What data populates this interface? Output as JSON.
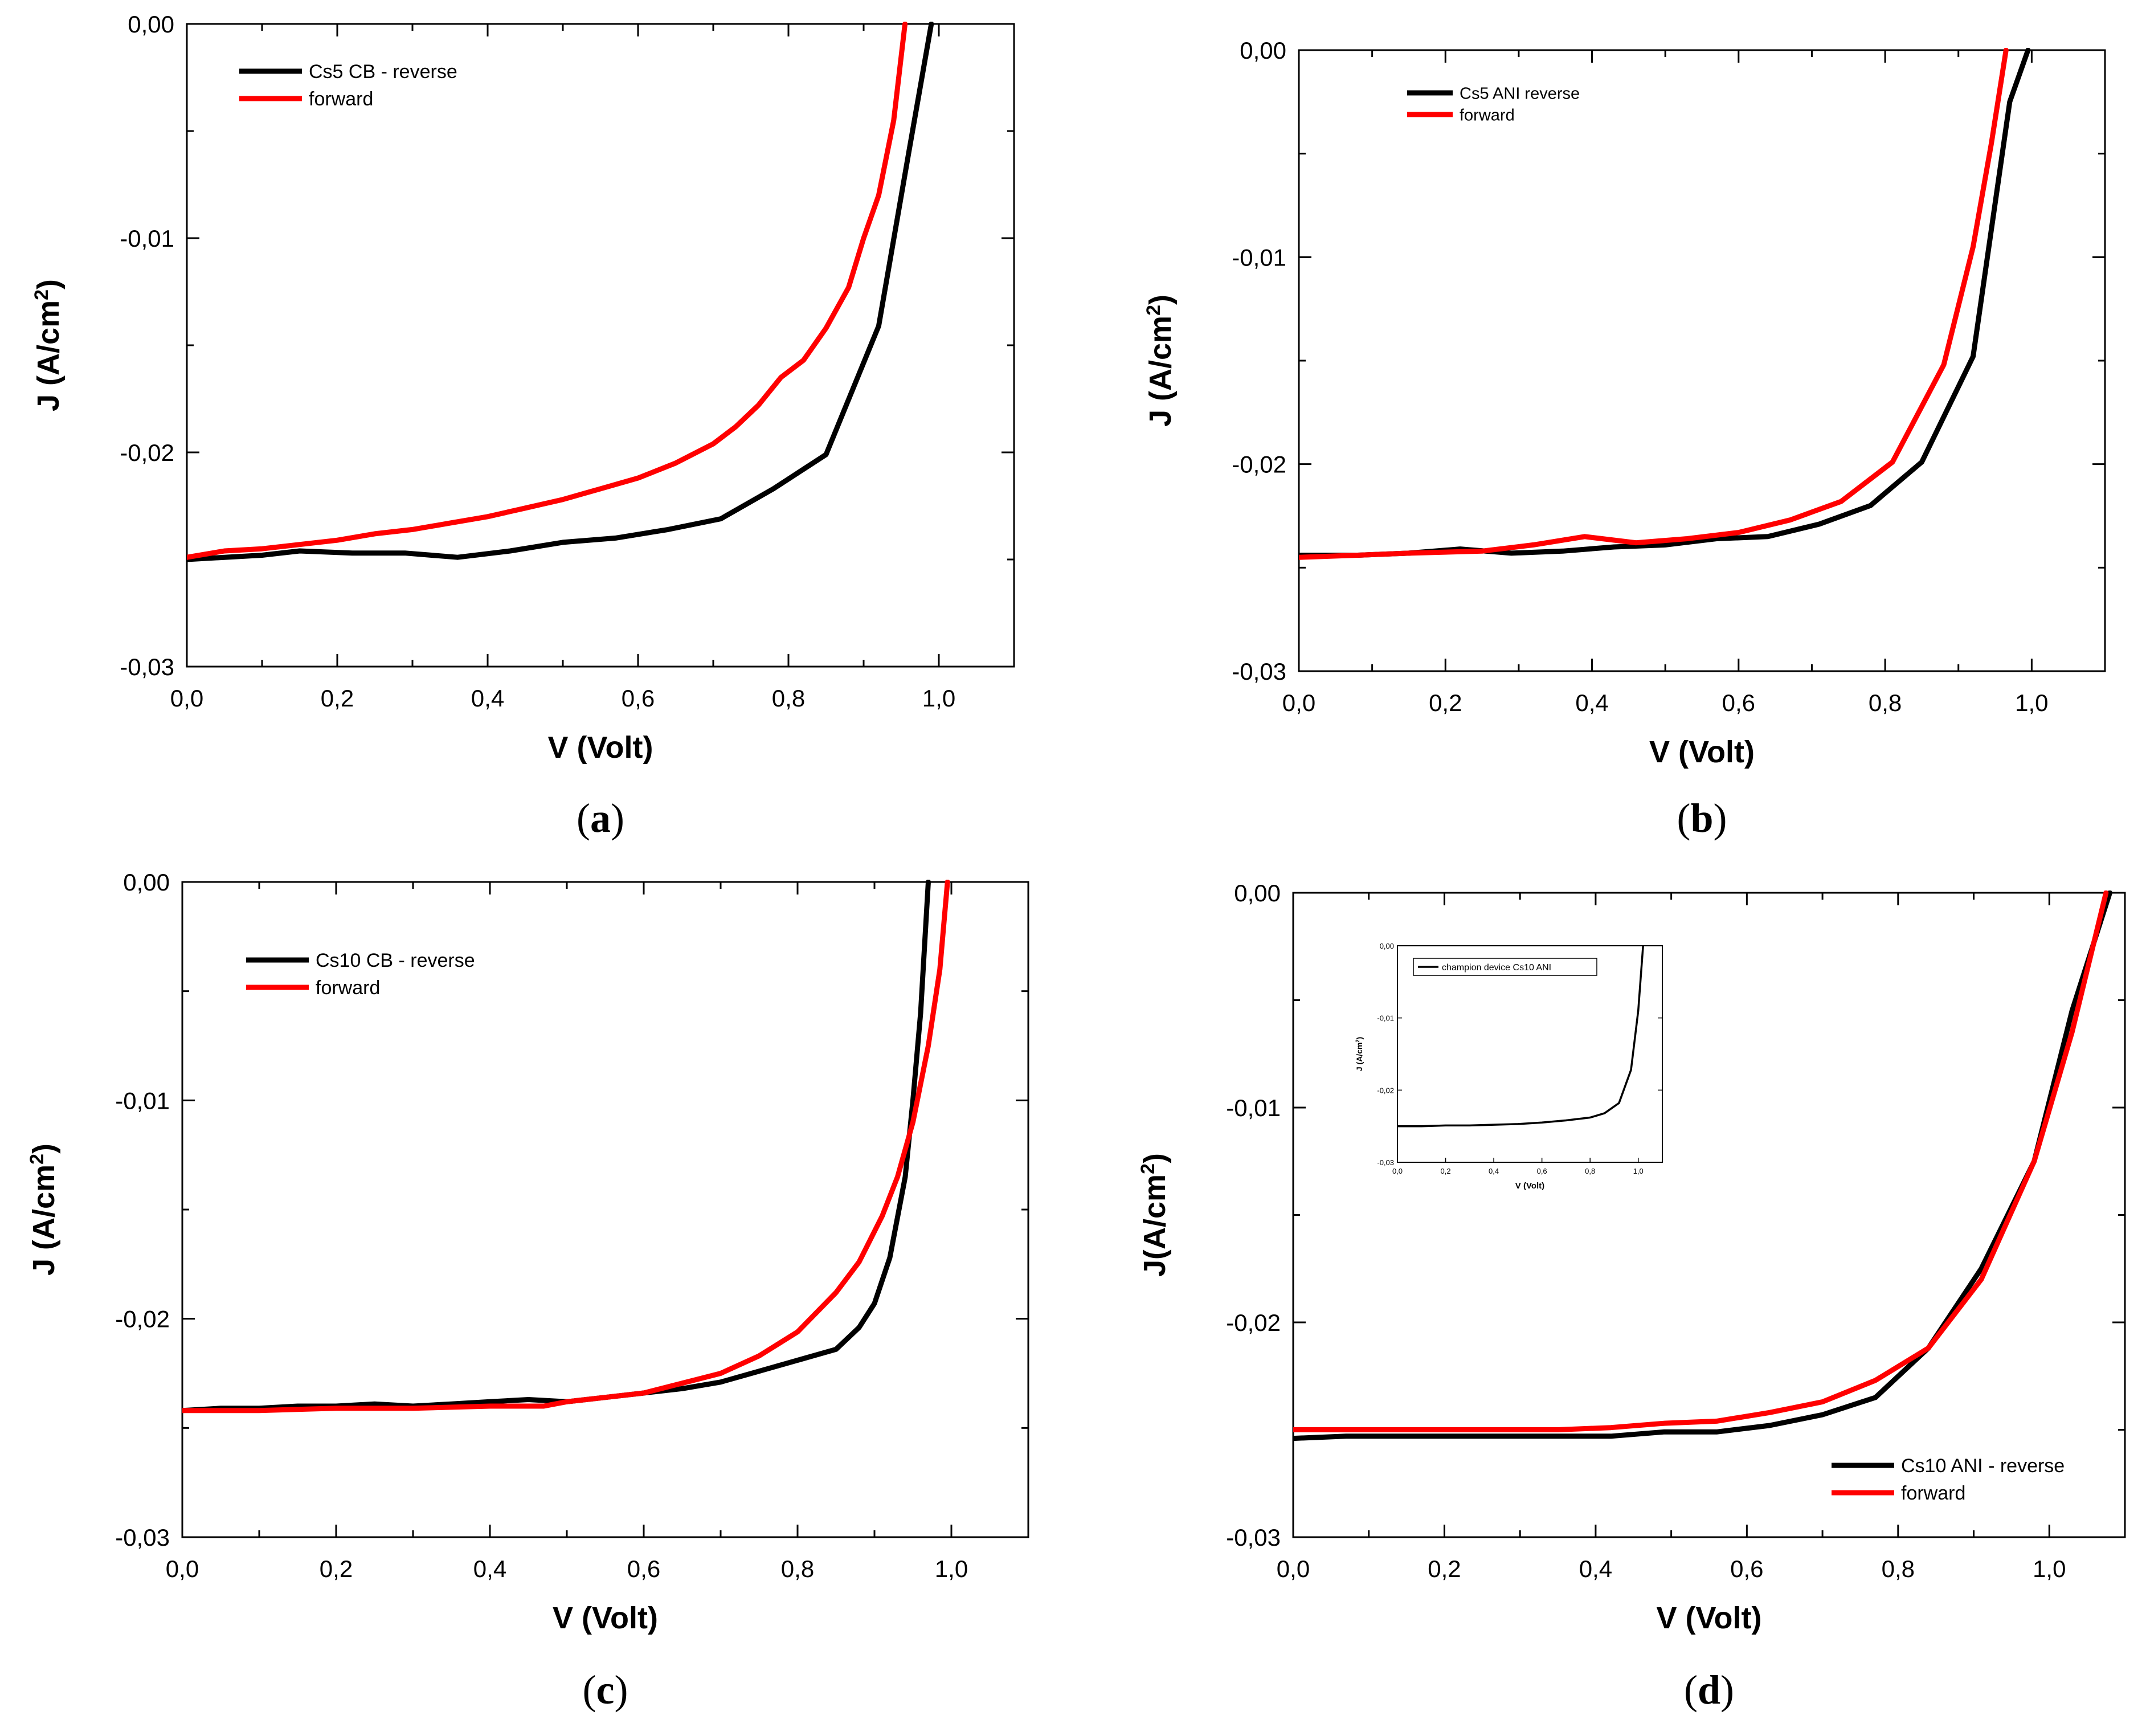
{
  "figure": {
    "panels": [
      {
        "label_open": "(",
        "label_letter": "a",
        "label_close": ")",
        "inset": null
      },
      {
        "label_open": "(",
        "label_letter": "b",
        "label_close": ")",
        "inset": null
      },
      {
        "label_open": "(",
        "label_letter": "c",
        "label_close": ")",
        "inset": null
      },
      {
        "label_open": "(",
        "label_letter": "d",
        "label_close": ")",
        "inset": {
          "title": "champion device Cs10 ANI",
          "xlabel": "V (Volt)",
          "ylabel_main": "J (A/cm",
          "ylabel_sup": "2",
          "ylabel_close": ")"
        }
      }
    ]
  },
  "chart_data": [
    {
      "type": "line",
      "title": "",
      "xlabel": "V (Volt)",
      "ylabel_main": "J (A/cm",
      "ylabel_sup": "2",
      "ylabel_close": ")",
      "xlim": [
        0,
        1.1
      ],
      "ylim": [
        -0.03,
        0.0
      ],
      "xticks": [
        0.0,
        0.2,
        0.4,
        0.6,
        0.8,
        1.0
      ],
      "xtick_labels": [
        "0,0",
        "0,2",
        "0,4",
        "0,6",
        "0,8",
        "1,0"
      ],
      "yticks": [
        0.0,
        -0.01,
        -0.02,
        -0.03
      ],
      "ytick_labels": [
        "0,00",
        "-0,01",
        "-0,02",
        "-0,03"
      ],
      "legend_position": "top-left",
      "series": [
        {
          "name": "Cs5 CB - reverse",
          "color": "#000000",
          "x": [
            0.0,
            0.05,
            0.1,
            0.15,
            0.22,
            0.29,
            0.36,
            0.43,
            0.5,
            0.57,
            0.64,
            0.71,
            0.78,
            0.85,
            0.92,
            0.96,
            0.99
          ],
          "y": [
            -0.025,
            -0.0249,
            -0.0248,
            -0.0246,
            -0.0247,
            -0.0247,
            -0.0249,
            -0.0246,
            -0.0242,
            -0.024,
            -0.0236,
            -0.0231,
            -0.0217,
            -0.0201,
            -0.0141,
            -0.006,
            0.0
          ]
        },
        {
          "name": "forward",
          "color": "#ff0000",
          "x": [
            0.0,
            0.05,
            0.1,
            0.15,
            0.2,
            0.25,
            0.3,
            0.35,
            0.4,
            0.45,
            0.5,
            0.55,
            0.6,
            0.65,
            0.7,
            0.73,
            0.76,
            0.79,
            0.82,
            0.85,
            0.88,
            0.9,
            0.92,
            0.94,
            0.955
          ],
          "y": [
            -0.0249,
            -0.0246,
            -0.0245,
            -0.0243,
            -0.0241,
            -0.0238,
            -0.0236,
            -0.0233,
            -0.023,
            -0.0226,
            -0.0222,
            -0.0217,
            -0.0212,
            -0.0205,
            -0.0196,
            -0.0188,
            -0.0178,
            -0.0165,
            -0.0157,
            -0.0142,
            -0.0123,
            -0.01,
            -0.008,
            -0.0045,
            0.0
          ]
        }
      ]
    },
    {
      "type": "line",
      "title": "",
      "xlabel": "V (Volt)",
      "ylabel_main": "J (A/cm",
      "ylabel_sup": "2",
      "ylabel_close": ")",
      "xlim": [
        0,
        1.1
      ],
      "ylim": [
        -0.03,
        0.0
      ],
      "xticks": [
        0.0,
        0.2,
        0.4,
        0.6,
        0.8,
        1.0
      ],
      "xtick_labels": [
        "0,0",
        "0,2",
        "0,4",
        "0,6",
        "0,8",
        "1,0"
      ],
      "yticks": [
        0.0,
        -0.01,
        -0.02,
        -0.03
      ],
      "ytick_labels": [
        "0,00",
        "-0,01",
        "-0,02",
        "-0,03"
      ],
      "legend_position": "top-left",
      "series": [
        {
          "name": "Cs5 ANI reverse",
          "color": "#000000",
          "x": [
            0.0,
            0.08,
            0.15,
            0.22,
            0.29,
            0.36,
            0.43,
            0.5,
            0.57,
            0.64,
            0.71,
            0.78,
            0.85,
            0.92,
            0.97,
            0.995
          ],
          "y": [
            -0.0244,
            -0.0244,
            -0.0243,
            -0.0241,
            -0.0243,
            -0.0242,
            -0.024,
            -0.0239,
            -0.0236,
            -0.0235,
            -0.0229,
            -0.022,
            -0.0199,
            -0.0148,
            -0.0025,
            0.0
          ]
        },
        {
          "name": "forward",
          "color": "#ff0000",
          "x": [
            0.0,
            0.08,
            0.15,
            0.25,
            0.32,
            0.39,
            0.46,
            0.53,
            0.6,
            0.67,
            0.74,
            0.81,
            0.88,
            0.92,
            0.945,
            0.965
          ],
          "y": [
            -0.0245,
            -0.0244,
            -0.0243,
            -0.0242,
            -0.0239,
            -0.0235,
            -0.0238,
            -0.0236,
            -0.0233,
            -0.0227,
            -0.0218,
            -0.0199,
            -0.0152,
            -0.0095,
            -0.0045,
            0.0
          ]
        }
      ]
    },
    {
      "type": "line",
      "title": "",
      "xlabel": "V (Volt)",
      "ylabel_main": "J (A/cm",
      "ylabel_sup": "2",
      "ylabel_close": ")",
      "xlim": [
        0,
        1.1
      ],
      "ylim": [
        -0.03,
        0.0
      ],
      "xticks": [
        0.0,
        0.2,
        0.4,
        0.6,
        0.8,
        1.0
      ],
      "xtick_labels": [
        "0,0",
        "0,2",
        "0,4",
        "0,6",
        "0,8",
        "1,0"
      ],
      "yticks": [
        0.0,
        -0.01,
        -0.02,
        -0.03
      ],
      "ytick_labels": [
        "0,00",
        "-0,01",
        "-0,02",
        "-0,03"
      ],
      "legend_position": "top-left",
      "series": [
        {
          "name": "Cs10 CB - reverse",
          "color": "#000000",
          "x": [
            0.0,
            0.05,
            0.1,
            0.15,
            0.2,
            0.25,
            0.3,
            0.35,
            0.4,
            0.45,
            0.5,
            0.55,
            0.6,
            0.65,
            0.7,
            0.75,
            0.8,
            0.85,
            0.88,
            0.9,
            0.92,
            0.94,
            0.95,
            0.96,
            0.97
          ],
          "y": [
            -0.0242,
            -0.0241,
            -0.0241,
            -0.024,
            -0.024,
            -0.0239,
            -0.024,
            -0.0239,
            -0.0238,
            -0.0237,
            -0.0238,
            -0.0236,
            -0.0234,
            -0.0232,
            -0.0229,
            -0.0224,
            -0.0219,
            -0.0214,
            -0.0204,
            -0.0193,
            -0.0172,
            -0.0135,
            -0.01,
            -0.006,
            0.0
          ]
        },
        {
          "name": "forward",
          "color": "#ff0000",
          "x": [
            0.0,
            0.1,
            0.2,
            0.3,
            0.4,
            0.47,
            0.5,
            0.6,
            0.7,
            0.75,
            0.8,
            0.85,
            0.88,
            0.91,
            0.93,
            0.95,
            0.97,
            0.985,
            0.995
          ],
          "y": [
            -0.0242,
            -0.0242,
            -0.0241,
            -0.0241,
            -0.024,
            -0.024,
            -0.0238,
            -0.0234,
            -0.0225,
            -0.0217,
            -0.0206,
            -0.0188,
            -0.0174,
            -0.0153,
            -0.0135,
            -0.011,
            -0.0075,
            -0.004,
            0.0
          ]
        }
      ]
    },
    {
      "type": "line",
      "title": "",
      "xlabel": "V (Volt)",
      "ylabel_main": "J(A/cm",
      "ylabel_sup": "2",
      "ylabel_close": ")",
      "xlim": [
        0,
        1.1
      ],
      "ylim": [
        -0.03,
        0.0
      ],
      "xticks": [
        0.0,
        0.2,
        0.4,
        0.6,
        0.8,
        1.0
      ],
      "xtick_labels": [
        "0,0",
        "0,2",
        "0,4",
        "0,6",
        "0,8",
        "1,0"
      ],
      "yticks": [
        0.0,
        -0.01,
        -0.02,
        -0.03
      ],
      "ytick_labels": [
        "0,00",
        "-0,01",
        "-0,02",
        "-0,03"
      ],
      "legend_position": "bottom-right",
      "series": [
        {
          "name": "Cs10 ANI - reverse",
          "color": "#000000",
          "x": [
            0.0,
            0.07,
            0.14,
            0.21,
            0.28,
            0.35,
            0.42,
            0.49,
            0.56,
            0.63,
            0.7,
            0.77,
            0.84,
            0.91,
            0.98,
            1.03,
            1.08
          ],
          "y": [
            -0.0254,
            -0.0253,
            -0.0253,
            -0.0253,
            -0.0253,
            -0.0253,
            -0.0253,
            -0.0251,
            -0.0251,
            -0.0248,
            -0.0243,
            -0.0235,
            -0.0212,
            -0.0175,
            -0.0125,
            -0.0055,
            0.0
          ]
        },
        {
          "name": "forward",
          "color": "#ff0000",
          "x": [
            0.0,
            0.07,
            0.14,
            0.21,
            0.28,
            0.35,
            0.42,
            0.49,
            0.56,
            0.63,
            0.7,
            0.77,
            0.84,
            0.91,
            0.98,
            1.03,
            1.075
          ],
          "y": [
            -0.025,
            -0.025,
            -0.025,
            -0.025,
            -0.025,
            -0.025,
            -0.0249,
            -0.0247,
            -0.0246,
            -0.0242,
            -0.0237,
            -0.0227,
            -0.0212,
            -0.018,
            -0.0125,
            -0.0065,
            0.0
          ]
        }
      ]
    },
    {
      "type": "line",
      "role": "inset",
      "xlabel": "V (Volt)",
      "xlim": [
        0,
        1.1
      ],
      "ylim": [
        -0.03,
        0.0
      ],
      "xticks": [
        0.0,
        0.2,
        0.4,
        0.6,
        0.8,
        1.0
      ],
      "xtick_labels": [
        "0,0",
        "0,2",
        "0,4",
        "0,6",
        "0,8",
        "1,0"
      ],
      "yticks": [
        0.0,
        -0.01,
        -0.02,
        -0.03
      ],
      "ytick_labels": [
        "0,00",
        "-0,01",
        "-0,02",
        "-0,03"
      ],
      "series": [
        {
          "name": "champion device Cs10 ANI",
          "color": "#000000",
          "x": [
            0.0,
            0.1,
            0.2,
            0.3,
            0.4,
            0.5,
            0.6,
            0.7,
            0.8,
            0.86,
            0.92,
            0.97,
            1.0,
            1.02
          ],
          "y": [
            -0.025,
            -0.025,
            -0.0249,
            -0.0249,
            -0.0248,
            -0.0247,
            -0.0245,
            -0.0242,
            -0.0238,
            -0.0232,
            -0.0218,
            -0.0172,
            -0.009,
            0.0
          ]
        }
      ]
    }
  ]
}
